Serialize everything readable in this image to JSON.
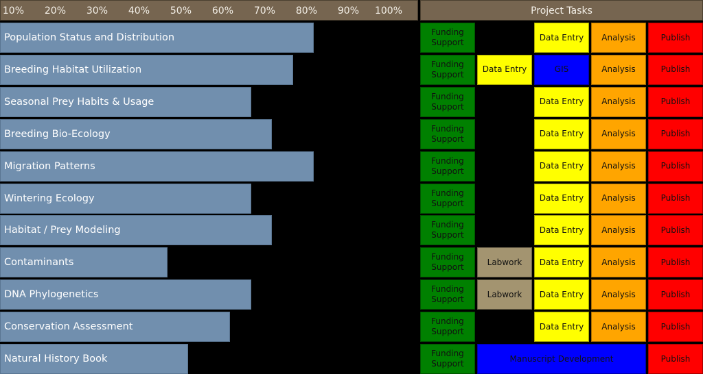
{
  "chart_data": {
    "type": "bar",
    "orientation": "horizontal",
    "axis_ticks": [
      "10%",
      "20%",
      "30%",
      "40%",
      "50%",
      "60%",
      "70%",
      "80%",
      "90%",
      "100%"
    ],
    "xlim": [
      0,
      100
    ],
    "categories": [
      "Population Status and Distribution",
      "Breeding Habitat Utilization",
      "Seasonal Prey Habits & Usage",
      "Breeding Bio-Ecology",
      "Migration Patterns",
      "Wintering Ecology",
      "Habitat / Prey Modeling",
      "Contaminants",
      "DNA Phylogenetics",
      "Conservation Assessment",
      "Natural History Book"
    ],
    "values": [
      80,
      75,
      65,
      70,
      80,
      65,
      70,
      45,
      65,
      60,
      50
    ],
    "bar_color": "#718fae",
    "header_color": "#766550"
  },
  "tasks_panel": {
    "title": "Project Tasks",
    "colors": {
      "funding": "#008000",
      "data": "#ffff00",
      "gis": "#0000ff",
      "analysis": "#ffa500",
      "publish": "#ff0000",
      "labwork": "#a39470",
      "manuscript": "#0000ff"
    },
    "rows": [
      [
        {
          "label": "Funding Support",
          "col": 0,
          "span": 1,
          "kind": "funding"
        },
        {
          "label": "Data Entry",
          "col": 2,
          "span": 1,
          "kind": "data"
        },
        {
          "label": "Analysis",
          "col": 3,
          "span": 1,
          "kind": "analysis"
        },
        {
          "label": "Publish",
          "col": 4,
          "span": 1,
          "kind": "publish"
        }
      ],
      [
        {
          "label": "Funding Support",
          "col": 0,
          "span": 1,
          "kind": "funding"
        },
        {
          "label": "Data Entry",
          "col": 1,
          "span": 1,
          "kind": "data"
        },
        {
          "label": "GIS",
          "col": 2,
          "span": 1,
          "kind": "gis"
        },
        {
          "label": "Analysis",
          "col": 3,
          "span": 1,
          "kind": "analysis"
        },
        {
          "label": "Publish",
          "col": 4,
          "span": 1,
          "kind": "publish"
        }
      ],
      [
        {
          "label": "Funding Support",
          "col": 0,
          "span": 1,
          "kind": "funding"
        },
        {
          "label": "Data Entry",
          "col": 2,
          "span": 1,
          "kind": "data"
        },
        {
          "label": "Analysis",
          "col": 3,
          "span": 1,
          "kind": "analysis"
        },
        {
          "label": "Publish",
          "col": 4,
          "span": 1,
          "kind": "publish"
        }
      ],
      [
        {
          "label": "Funding Support",
          "col": 0,
          "span": 1,
          "kind": "funding"
        },
        {
          "label": "Data Entry",
          "col": 2,
          "span": 1,
          "kind": "data"
        },
        {
          "label": "Analysis",
          "col": 3,
          "span": 1,
          "kind": "analysis"
        },
        {
          "label": "Publish",
          "col": 4,
          "span": 1,
          "kind": "publish"
        }
      ],
      [
        {
          "label": "Funding Support",
          "col": 0,
          "span": 1,
          "kind": "funding"
        },
        {
          "label": "Data Entry",
          "col": 2,
          "span": 1,
          "kind": "data"
        },
        {
          "label": "Analysis",
          "col": 3,
          "span": 1,
          "kind": "analysis"
        },
        {
          "label": "Publish",
          "col": 4,
          "span": 1,
          "kind": "publish"
        }
      ],
      [
        {
          "label": "Funding Support",
          "col": 0,
          "span": 1,
          "kind": "funding"
        },
        {
          "label": "Data Entry",
          "col": 2,
          "span": 1,
          "kind": "data"
        },
        {
          "label": "Analysis",
          "col": 3,
          "span": 1,
          "kind": "analysis"
        },
        {
          "label": "Publish",
          "col": 4,
          "span": 1,
          "kind": "publish"
        }
      ],
      [
        {
          "label": "Funding Support",
          "col": 0,
          "span": 1,
          "kind": "funding"
        },
        {
          "label": "Data Entry",
          "col": 2,
          "span": 1,
          "kind": "data"
        },
        {
          "label": "Analysis",
          "col": 3,
          "span": 1,
          "kind": "analysis"
        },
        {
          "label": "Publish",
          "col": 4,
          "span": 1,
          "kind": "publish"
        }
      ],
      [
        {
          "label": "Funding Support",
          "col": 0,
          "span": 1,
          "kind": "funding"
        },
        {
          "label": "Labwork",
          "col": 1,
          "span": 1,
          "kind": "labwork"
        },
        {
          "label": "Data Entry",
          "col": 2,
          "span": 1,
          "kind": "data"
        },
        {
          "label": "Analysis",
          "col": 3,
          "span": 1,
          "kind": "analysis"
        },
        {
          "label": "Publish",
          "col": 4,
          "span": 1,
          "kind": "publish"
        }
      ],
      [
        {
          "label": "Funding Support",
          "col": 0,
          "span": 1,
          "kind": "funding"
        },
        {
          "label": "Labwork",
          "col": 1,
          "span": 1,
          "kind": "labwork"
        },
        {
          "label": "Data Entry",
          "col": 2,
          "span": 1,
          "kind": "data"
        },
        {
          "label": "Analysis",
          "col": 3,
          "span": 1,
          "kind": "analysis"
        },
        {
          "label": "Publish",
          "col": 4,
          "span": 1,
          "kind": "publish"
        }
      ],
      [
        {
          "label": "Funding Support",
          "col": 0,
          "span": 1,
          "kind": "funding"
        },
        {
          "label": "Data Entry",
          "col": 2,
          "span": 1,
          "kind": "data"
        },
        {
          "label": "Analysis",
          "col": 3,
          "span": 1,
          "kind": "analysis"
        },
        {
          "label": "Publish",
          "col": 4,
          "span": 1,
          "kind": "publish"
        }
      ],
      [
        {
          "label": "Funding Support",
          "col": 0,
          "span": 1,
          "kind": "funding"
        },
        {
          "label": "Manuscript Development",
          "col": 1,
          "span": 3,
          "kind": "manuscript"
        },
        {
          "label": "Publish",
          "col": 4,
          "span": 1,
          "kind": "publish"
        }
      ]
    ]
  }
}
